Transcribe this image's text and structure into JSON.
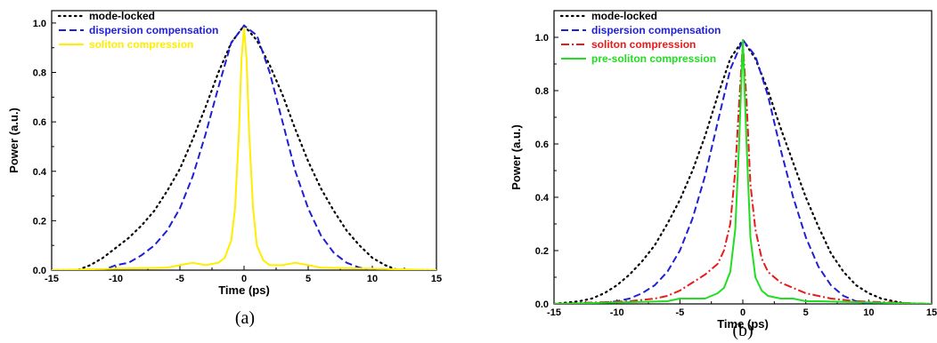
{
  "chart_data": [
    {
      "type": "line",
      "panel": "a",
      "caption": "(a)",
      "xlabel": "Time (ps)",
      "ylabel": "Power (a.u.)",
      "xlim": [
        -15,
        15
      ],
      "ylim": [
        0,
        1.05
      ],
      "xticks": [
        -15,
        -10,
        -5,
        0,
        5,
        10,
        15
      ],
      "yticks": [
        0.0,
        0.2,
        0.4,
        0.6,
        0.8,
        1.0
      ],
      "xtick_labels": [
        "-15",
        "-10",
        "-5",
        "0",
        "5",
        "10",
        "15"
      ],
      "ytick_labels": [
        "0.0",
        "0.2",
        "0.4",
        "0.6",
        "0.8",
        "1.0"
      ],
      "grid": false,
      "legend_position": "top-left",
      "series": [
        {
          "name": "mode-locked",
          "color": "#000000",
          "style": "dotted",
          "x": [
            -15,
            -13,
            -12,
            -11,
            -10,
            -9,
            -8,
            -7,
            -6,
            -5,
            -4,
            -3,
            -2,
            -1,
            0,
            1,
            2,
            3,
            4,
            5,
            6,
            7,
            8,
            9,
            10,
            11,
            12,
            13,
            15
          ],
          "y": [
            0.0,
            0.0,
            0.02,
            0.05,
            0.09,
            0.13,
            0.18,
            0.24,
            0.32,
            0.41,
            0.53,
            0.66,
            0.8,
            0.92,
            0.99,
            0.93,
            0.83,
            0.71,
            0.57,
            0.44,
            0.33,
            0.24,
            0.16,
            0.1,
            0.05,
            0.02,
            0.0,
            0.0,
            0.0
          ]
        },
        {
          "name": "dispersion compensation",
          "color": "#1f1fd6",
          "style": "dashed",
          "x": [
            -13,
            -12,
            -11,
            -10,
            -9,
            -8,
            -7,
            -6,
            -5,
            -4,
            -3,
            -2,
            -1,
            0,
            1,
            2,
            3,
            4,
            5,
            6,
            7,
            8,
            9,
            10,
            11,
            12
          ],
          "y": [
            0.0,
            0.0,
            0.0,
            0.02,
            0.03,
            0.06,
            0.1,
            0.16,
            0.25,
            0.38,
            0.55,
            0.74,
            0.92,
            0.99,
            0.95,
            0.8,
            0.6,
            0.4,
            0.25,
            0.14,
            0.07,
            0.03,
            0.01,
            0.0,
            0.0,
            0.0
          ]
        },
        {
          "name": "soliton compression",
          "color": "#ffee00",
          "style": "solid",
          "x": [
            -15,
            -6,
            -5,
            -4,
            -3,
            -2,
            -1.5,
            -1,
            -0.7,
            -0.4,
            -0.2,
            0,
            0.2,
            0.4,
            0.7,
            1,
            1.5,
            2,
            3,
            4,
            5,
            6,
            15
          ],
          "y": [
            0.0,
            0.01,
            0.02,
            0.03,
            0.02,
            0.03,
            0.05,
            0.12,
            0.25,
            0.55,
            0.85,
            0.98,
            0.85,
            0.55,
            0.25,
            0.1,
            0.04,
            0.02,
            0.02,
            0.03,
            0.02,
            0.01,
            0.0
          ]
        }
      ]
    },
    {
      "type": "line",
      "panel": "b",
      "caption": "(b)",
      "xlabel": "Time (ps)",
      "ylabel": "Power (a.u.)",
      "xlim": [
        -15,
        15
      ],
      "ylim": [
        0,
        1.1
      ],
      "xticks": [
        -15,
        -10,
        -5,
        0,
        5,
        10,
        15
      ],
      "yticks": [
        0.0,
        0.2,
        0.4,
        0.6,
        0.8,
        1.0
      ],
      "xtick_labels": [
        "-15",
        "-10",
        "-5",
        "0",
        "5",
        "10",
        "15"
      ],
      "ytick_labels": [
        "0.0",
        "0.2",
        "0.4",
        "0.6",
        "0.8",
        "1.0"
      ],
      "grid": false,
      "legend_position": "top-left",
      "series": [
        {
          "name": "mode-locked",
          "color": "#000000",
          "style": "dotted",
          "x": [
            -15,
            -13,
            -12,
            -11,
            -10,
            -9,
            -8,
            -7,
            -6,
            -5,
            -4,
            -3,
            -2,
            -1,
            0,
            1,
            2,
            3,
            4,
            5,
            6,
            7,
            8,
            9,
            10,
            11,
            12,
            13,
            15
          ],
          "y": [
            0.0,
            0.01,
            0.02,
            0.04,
            0.07,
            0.11,
            0.16,
            0.22,
            0.3,
            0.39,
            0.5,
            0.63,
            0.78,
            0.92,
            0.99,
            0.92,
            0.8,
            0.66,
            0.53,
            0.4,
            0.29,
            0.19,
            0.12,
            0.07,
            0.04,
            0.02,
            0.01,
            0.0,
            0.0
          ]
        },
        {
          "name": "dispersion compensation",
          "color": "#1f1fd6",
          "style": "dashed",
          "x": [
            -12,
            -10,
            -9,
            -8,
            -7,
            -6,
            -5,
            -4,
            -3,
            -2,
            -1,
            0,
            1,
            2,
            3,
            4,
            5,
            6,
            7,
            8,
            9,
            10,
            12
          ],
          "y": [
            0.0,
            0.01,
            0.02,
            0.04,
            0.07,
            0.12,
            0.2,
            0.32,
            0.48,
            0.68,
            0.88,
            0.99,
            0.93,
            0.78,
            0.58,
            0.4,
            0.25,
            0.14,
            0.07,
            0.03,
            0.01,
            0.0,
            0.0
          ]
        },
        {
          "name": "soliton compression",
          "color": "#e81a1a",
          "style": "dashdot",
          "x": [
            -15,
            -9,
            -7,
            -6,
            -5,
            -4,
            -3,
            -2,
            -1.5,
            -1,
            -0.6,
            -0.3,
            0,
            0.3,
            0.6,
            1,
            1.5,
            2,
            3,
            4,
            5,
            6,
            7,
            9,
            15
          ],
          "y": [
            0.0,
            0.01,
            0.02,
            0.03,
            0.05,
            0.08,
            0.11,
            0.15,
            0.2,
            0.3,
            0.5,
            0.75,
            0.98,
            0.76,
            0.45,
            0.28,
            0.17,
            0.12,
            0.08,
            0.06,
            0.04,
            0.03,
            0.02,
            0.01,
            0.0
          ]
        },
        {
          "name": "pre-soliton compression",
          "color": "#22dd22",
          "style": "solid",
          "x": [
            -15,
            -6,
            -5,
            -4,
            -3,
            -2,
            -1.5,
            -1,
            -0.6,
            -0.3,
            0,
            0.3,
            0.6,
            1,
            1.5,
            2,
            3,
            4,
            5,
            6,
            15
          ],
          "y": [
            0.0,
            0.01,
            0.02,
            0.02,
            0.02,
            0.04,
            0.06,
            0.12,
            0.28,
            0.6,
            0.99,
            0.6,
            0.25,
            0.1,
            0.05,
            0.03,
            0.02,
            0.02,
            0.01,
            0.01,
            0.0
          ]
        }
      ]
    }
  ]
}
